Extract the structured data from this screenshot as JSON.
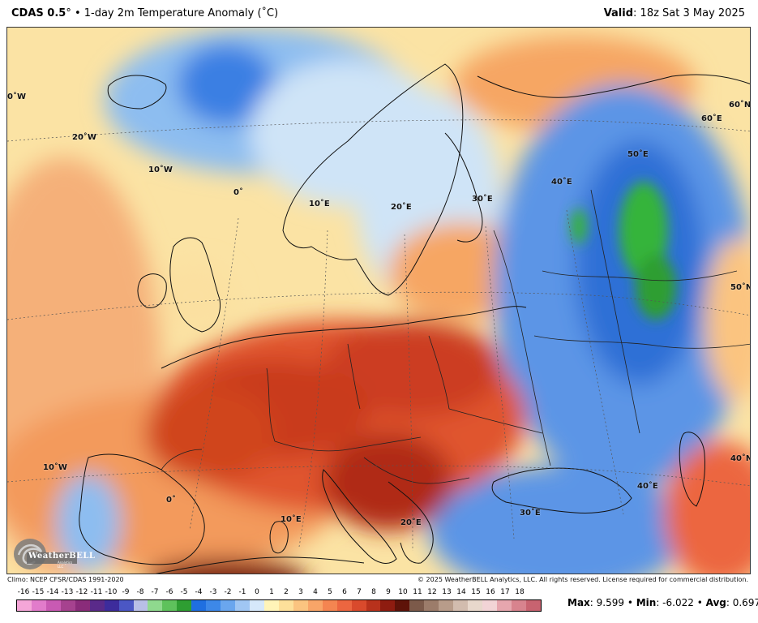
{
  "header": {
    "model": "CDAS 0.5",
    "degree": "°",
    "bullet": " • ",
    "product": "1-day 2m Temperature Anomaly (˚C)",
    "valid_label": "Valid",
    "valid_value": ": 18z Sat 3 May 2025"
  },
  "map_labels": {
    "lon_0W_top": "0˚W",
    "lon_20W": "20˚W",
    "lon_10W_top": "10˚W",
    "lon_0": "0˚",
    "lon_10E_top": "10˚E",
    "lon_20E": "20˚E",
    "lon_30E_top": "30˚E",
    "lon_40E_top": "40˚E",
    "lon_50E": "50˚E",
    "lat_60N": "60˚N",
    "lon_60E": "60˚E",
    "lat_50N": "50˚N",
    "lat_40N": "40˚N",
    "lon_40E_bottom": "40˚E",
    "lon_30E_bottom": "30˚E",
    "lon_20E_bottom": "20˚E",
    "lon_10E_bottom": "10˚E",
    "lon_0_bottom": "0˚",
    "lon_10W_bottom": "10˚W"
  },
  "logo": {
    "text": "WeatherBELL",
    "sub": "Analytics LLC"
  },
  "footer": {
    "climo": "Climo: NCEP CFSR/CDAS 1991-2020",
    "copyright": "© 2025 WeatherBELL Analytics, LLC. All rights reserved. License required for commercial distribution."
  },
  "colorbar": {
    "ticks": [
      "-16",
      "-15",
      "-14",
      "-13",
      "-12",
      "-11",
      "-10",
      "-9",
      "-8",
      "-7",
      "-6",
      "-5",
      "-4",
      "-3",
      "-2",
      "-1",
      "0",
      "1",
      "2",
      "3",
      "4",
      "5",
      "6",
      "7",
      "8",
      "9",
      "10",
      "11",
      "12",
      "13",
      "14",
      "15",
      "16",
      "17",
      "18"
    ],
    "colors": [
      "#f5a6d8",
      "#e27ccb",
      "#c95ab3",
      "#a6428f",
      "#8a2c7a",
      "#5a2a8a",
      "#3d2c9c",
      "#4b57c4",
      "#b8bfe6",
      "#8fd98e",
      "#5ec25c",
      "#2e9e32",
      "#1f6fe0",
      "#3d88e8",
      "#6aa6ee",
      "#a0c6f3",
      "#d6e8fa",
      "#fff4b8",
      "#fde09a",
      "#fbc480",
      "#f8a568",
      "#f48551",
      "#ec6640",
      "#d94a2c",
      "#b8321c",
      "#8e1c10",
      "#5e1309",
      "#7c5a4a",
      "#9c7c6a",
      "#b89c8a",
      "#d2bcae",
      "#e8d8cc",
      "#f2d4d6",
      "#e6a6ae",
      "#d8838e",
      "#c86370"
    ]
  },
  "stats": {
    "max_label": "Max",
    "max_value": ": 9.599",
    "min_label": "Min",
    "min_value": ": -6.022",
    "avg_label": "Avg",
    "avg_value": ": 0.697",
    "sep": " • "
  },
  "colors": {
    "warm_light": "#fde7a8",
    "warm_mid": "#f6a664",
    "warm_strong": "#e0552f",
    "warm_extreme": "#a3220f",
    "cool_light": "#cfe4f7",
    "cool_mid": "#8dbdf0",
    "cool_strong": "#3b7fe3",
    "green_anomaly": "#36b43a"
  }
}
